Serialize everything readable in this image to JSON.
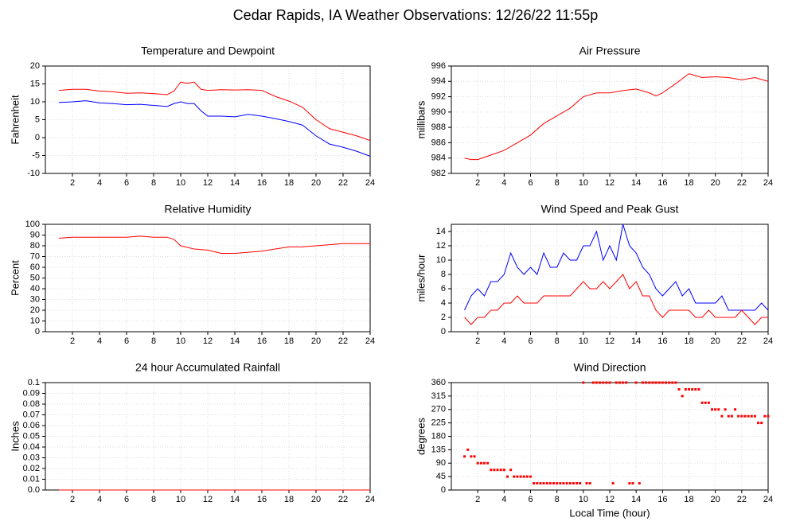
{
  "title": "Cedar Rapids, IA Weather Observations: 12/26/22 11:55p",
  "chart_data": [
    {
      "type": "line",
      "title": "Temperature and Dewpoint",
      "ylabel": "Fahrenheit",
      "x": [
        1,
        2,
        3,
        4,
        5,
        6,
        7,
        8,
        9,
        9.5,
        10,
        10.5,
        11,
        11.5,
        12,
        13,
        14,
        15,
        16,
        17,
        18,
        19,
        20,
        21,
        22,
        23,
        24
      ],
      "series": [
        {
          "name": "Temperature",
          "color": "#ff0000",
          "values": [
            13.2,
            13.5,
            13.5,
            13,
            12.8,
            12.4,
            12.5,
            12.3,
            12,
            13,
            15.5,
            15.2,
            15.5,
            13.5,
            13.2,
            13.4,
            13.3,
            13.4,
            13.2,
            11.5,
            10.2,
            8.5,
            5,
            2.5,
            1.5,
            0.5,
            -0.8
          ]
        },
        {
          "name": "Dewpoint",
          "color": "#0000ff",
          "values": [
            9.8,
            10,
            10.3,
            9.7,
            9.5,
            9.2,
            9.3,
            9,
            8.7,
            9.5,
            10,
            9.5,
            9.5,
            7.5,
            6,
            6,
            5.8,
            6.5,
            6,
            5.3,
            4.5,
            3.5,
            0.5,
            -1.8,
            -2.7,
            -3.8,
            -5.2
          ]
        }
      ],
      "xlim": [
        0,
        24
      ],
      "xticks": [
        2,
        4,
        6,
        8,
        10,
        12,
        14,
        16,
        18,
        20,
        22,
        24
      ],
      "ylim": [
        -10,
        20
      ],
      "yticks": [
        -10,
        -5,
        0,
        5,
        10,
        15,
        20
      ],
      "grid": true
    },
    {
      "type": "line",
      "title": "Air Pressure",
      "ylabel": "millibars",
      "x": [
        1,
        1.5,
        2,
        3,
        4,
        5,
        6,
        7,
        8,
        9,
        10,
        11,
        12,
        13,
        14,
        15,
        15.5,
        16,
        17,
        18,
        19,
        20,
        21,
        22,
        23,
        24
      ],
      "series": [
        {
          "name": "Pressure",
          "color": "#ff0000",
          "values": [
            984,
            983.8,
            983.8,
            984.4,
            985,
            986,
            987,
            988.5,
            989.5,
            990.5,
            992,
            992.5,
            992.5,
            992.8,
            993,
            992.5,
            992.1,
            992.5,
            993.7,
            995,
            994.5,
            994.6,
            994.5,
            994.2,
            994.5,
            994
          ]
        }
      ],
      "xlim": [
        0,
        24
      ],
      "xticks": [
        2,
        4,
        6,
        8,
        10,
        12,
        14,
        16,
        18,
        20,
        22,
        24
      ],
      "ylim": [
        982,
        996
      ],
      "yticks": [
        982,
        984,
        986,
        988,
        990,
        992,
        994,
        996
      ],
      "grid": true
    },
    {
      "type": "line",
      "title": "Relative Humidity",
      "ylabel": "Percent",
      "x": [
        1,
        2,
        4,
        6,
        7,
        8,
        9,
        9.5,
        10,
        11,
        12,
        13,
        14,
        15,
        16,
        17,
        18,
        19,
        20,
        21,
        22,
        23,
        24
      ],
      "series": [
        {
          "name": "Relative Humidity",
          "color": "#ff0000",
          "values": [
            87,
            88,
            88,
            88,
            89,
            88,
            88,
            86,
            80,
            77,
            76,
            73,
            73,
            74,
            75,
            77,
            79,
            79,
            80,
            81,
            82,
            82,
            82
          ]
        }
      ],
      "xlim": [
        0,
        24
      ],
      "xticks": [
        2,
        4,
        6,
        8,
        10,
        12,
        14,
        16,
        18,
        20,
        22,
        24
      ],
      "ylim": [
        0,
        100
      ],
      "yticks": [
        0,
        10,
        20,
        30,
        40,
        50,
        60,
        70,
        80,
        90,
        100
      ],
      "grid": true
    },
    {
      "type": "line",
      "title": "Wind Speed and Peak Gust",
      "ylabel": "miles/hour",
      "x": [
        1,
        1.5,
        2,
        2.5,
        3,
        3.5,
        4,
        4.5,
        5,
        5.5,
        6,
        6.5,
        7,
        7.5,
        8,
        8.5,
        9,
        9.5,
        10,
        10.5,
        11,
        11.5,
        12,
        12.5,
        13,
        13.5,
        14,
        14.5,
        15,
        15.5,
        16,
        16.5,
        17,
        17.5,
        18,
        18.5,
        19,
        19.5,
        20,
        20.5,
        21,
        21.5,
        22,
        22.5,
        23,
        23.5,
        24
      ],
      "series": [
        {
          "name": "Peak Gust",
          "color": "#0000ff",
          "values": [
            3,
            5,
            6,
            5,
            7,
            7,
            8,
            11,
            9,
            8,
            9,
            8,
            11,
            9,
            9,
            11,
            10,
            10,
            12,
            12,
            14,
            10,
            12,
            10,
            15,
            12,
            11,
            9,
            8,
            6,
            5,
            6,
            7,
            5,
            6,
            4,
            4,
            4,
            4,
            5,
            3,
            3,
            3,
            3,
            3,
            4,
            3
          ]
        },
        {
          "name": "Wind Speed",
          "color": "#ff0000",
          "values": [
            2,
            1,
            2,
            2,
            3,
            3,
            4,
            4,
            5,
            4,
            4,
            4,
            5,
            5,
            5,
            5,
            5,
            6,
            7,
            6,
            6,
            7,
            6,
            7,
            8,
            6,
            7,
            5,
            5,
            3,
            2,
            3,
            3,
            3,
            3,
            2,
            2,
            3,
            2,
            2,
            2,
            2,
            3,
            2,
            1,
            2,
            2
          ]
        }
      ],
      "xlim": [
        0,
        24
      ],
      "xticks": [
        2,
        4,
        6,
        8,
        10,
        12,
        14,
        16,
        18,
        20,
        22,
        24
      ],
      "ylim": [
        0,
        15
      ],
      "yticks": [
        0,
        2,
        4,
        6,
        8,
        10,
        12,
        14
      ],
      "grid": true
    },
    {
      "type": "line",
      "title": "24 hour Accumulated Rainfall",
      "ylabel": "Inches",
      "x": [
        1,
        24
      ],
      "series": [
        {
          "name": "Rainfall",
          "color": "#ff0000",
          "values": [
            0,
            0
          ]
        }
      ],
      "xlim": [
        0,
        24
      ],
      "xticks": [
        2,
        4,
        6,
        8,
        10,
        12,
        14,
        16,
        18,
        20,
        22,
        24
      ],
      "ylim": [
        0,
        0.1
      ],
      "yticks": [
        {
          "value": 0,
          "label": "0.0"
        },
        0.01,
        0.02,
        0.03,
        0.04,
        0.05,
        0.06,
        0.07,
        0.08,
        0.09,
        0.1
      ],
      "grid": true
    },
    {
      "type": "scatter",
      "title": "Wind Direction",
      "ylabel": "degrees",
      "xlabel": "Local Time (hour)",
      "x": [
        1,
        1.25,
        1.5,
        1.75,
        2,
        2.25,
        2.5,
        2.75,
        3,
        3.25,
        3.5,
        3.75,
        4,
        4.25,
        4.5,
        4.75,
        5,
        5.25,
        5.5,
        5.75,
        6,
        6.25,
        6.5,
        6.75,
        7,
        7.25,
        7.5,
        7.75,
        8,
        8.25,
        8.5,
        8.75,
        9,
        9.25,
        9.5,
        9.75,
        10,
        10.25,
        10.5,
        10.75,
        11,
        11.25,
        11.5,
        11.75,
        12,
        12.25,
        12.5,
        12.75,
        13,
        13.25,
        13.5,
        13.75,
        14,
        14.25,
        14.5,
        14.75,
        15,
        15.25,
        15.5,
        15.75,
        16,
        16.25,
        16.5,
        16.75,
        17,
        17.25,
        17.5,
        17.75,
        18,
        18.25,
        18.5,
        18.75,
        19,
        19.25,
        19.5,
        19.75,
        20,
        20.25,
        20.5,
        20.75,
        21,
        21.25,
        21.5,
        21.75,
        22,
        22.25,
        22.5,
        22.75,
        23,
        23.25,
        23.5,
        23.75,
        24
      ],
      "series": [
        {
          "name": "Wind Direction",
          "color": "#ff0000",
          "values": [
            112.5,
            135,
            112.5,
            112.5,
            90,
            90,
            90,
            90,
            67.5,
            67.5,
            67.5,
            67.5,
            67.5,
            45,
            67.5,
            45,
            45,
            45,
            45,
            45,
            45,
            22.5,
            22.5,
            22.5,
            22.5,
            22.5,
            22.5,
            22.5,
            22.5,
            22.5,
            22.5,
            22.5,
            22.5,
            22.5,
            22.5,
            22.5,
            360,
            22.5,
            22.5,
            360,
            360,
            360,
            360,
            360,
            360,
            22.5,
            360,
            360,
            360,
            360,
            22.5,
            22.5,
            360,
            22.5,
            360,
            360,
            360,
            360,
            360,
            360,
            360,
            360,
            360,
            360,
            360,
            337.5,
            315,
            337.5,
            337.5,
            337.5,
            337.5,
            337.5,
            292.5,
            292.5,
            292.5,
            270,
            270,
            270,
            247.5,
            270,
            247.5,
            247.5,
            270,
            247.5,
            247.5,
            247.5,
            247.5,
            247.5,
            247.5,
            225,
            225,
            247.5,
            247.5
          ]
        }
      ],
      "xlim": [
        0,
        24
      ],
      "xticks": [
        2,
        4,
        6,
        8,
        10,
        12,
        14,
        16,
        18,
        20,
        22,
        24
      ],
      "ylim": [
        0,
        360
      ],
      "yticks": [
        0,
        45,
        90,
        135,
        180,
        225,
        270,
        315,
        360
      ],
      "grid": true
    }
  ]
}
